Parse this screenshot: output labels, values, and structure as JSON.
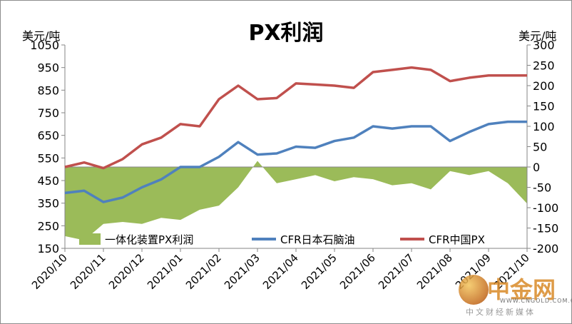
{
  "chart_data": {
    "type": "line+area",
    "title": "PX利润",
    "left_axis": {
      "unit": "美元/吨",
      "min": 150,
      "max": 1050,
      "ticks": [
        150,
        250,
        350,
        450,
        550,
        650,
        750,
        850,
        950,
        1050
      ]
    },
    "right_axis": {
      "unit": "美元/吨",
      "min": -200,
      "max": 300,
      "ticks": [
        -200,
        -150,
        -100,
        -50,
        0,
        50,
        100,
        150,
        200,
        250,
        300
      ]
    },
    "x_categories": [
      "2020/10",
      "2020/11",
      "2020/12",
      "2021/01",
      "2021/02",
      "2021/03",
      "2021/04",
      "2021/05",
      "2021/06",
      "2021/07",
      "2021/08",
      "2021/09",
      "2021/10"
    ],
    "x_index": [
      0,
      0.5,
      1,
      1.5,
      2,
      2.5,
      3,
      3.5,
      4,
      4.5,
      5,
      5.5,
      6,
      6.5,
      7,
      7.5,
      8,
      8.5,
      9,
      9.5,
      10,
      10.5,
      11,
      11.5,
      12
    ],
    "series": [
      {
        "name": "一体化装置PX利润",
        "kind": "area",
        "axis": "right",
        "color": "#9bbb59",
        "values": [
          -170,
          -180,
          -140,
          -135,
          -140,
          -125,
          -130,
          -105,
          -95,
          -50,
          15,
          -40,
          -30,
          -20,
          -35,
          -25,
          -30,
          -45,
          -40,
          -55,
          -10,
          -20,
          -10,
          -40,
          -90
        ]
      },
      {
        "name": "CFR日本石脑油",
        "kind": "line",
        "axis": "left",
        "color": "#4f81bd",
        "values": [
          395,
          405,
          355,
          375,
          420,
          455,
          510,
          510,
          555,
          620,
          565,
          570,
          600,
          595,
          625,
          640,
          690,
          680,
          690,
          690,
          625,
          665,
          700,
          710,
          710
        ]
      },
      {
        "name": "CFR中国PX",
        "kind": "line",
        "axis": "left",
        "color": "#c0504d",
        "values": [
          510,
          530,
          505,
          545,
          610,
          640,
          700,
          690,
          810,
          870,
          810,
          815,
          880,
          875,
          870,
          860,
          930,
          940,
          950,
          940,
          890,
          905,
          915,
          915,
          915
        ]
      }
    ],
    "legend_position": "bottom-inside",
    "grid": false
  },
  "watermark": {
    "name": "中金网",
    "url": "WWW.CNGOLD.COM.CN",
    "slogan": "中文财经新媒体"
  }
}
